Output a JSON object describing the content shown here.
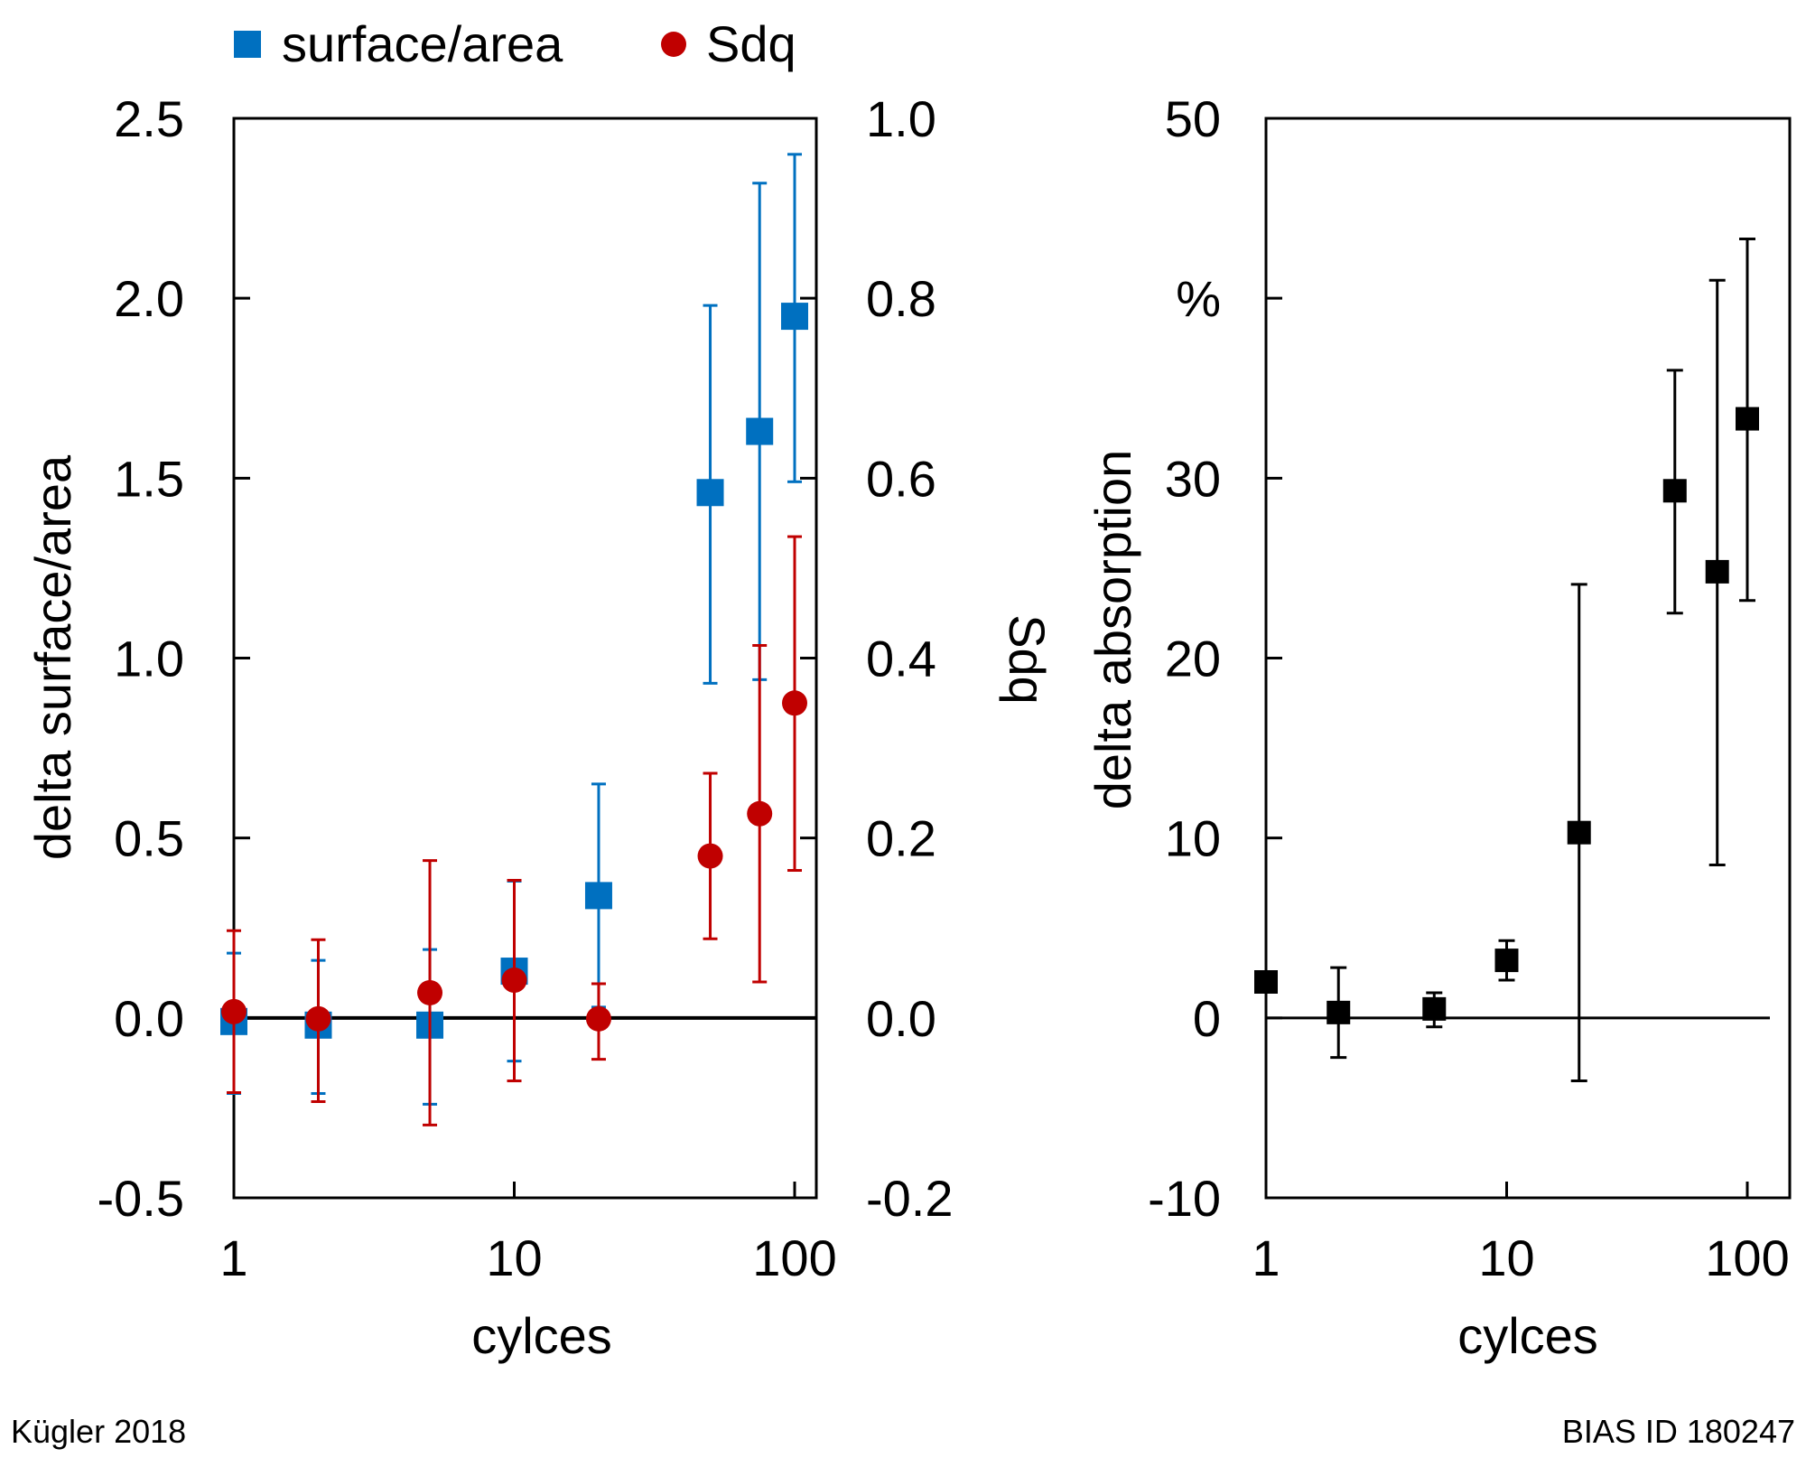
{
  "chart_data": [
    {
      "type": "scatter",
      "xscale": "log",
      "xlim": [
        1,
        100
      ],
      "xticks": [
        1,
        10,
        100
      ],
      "xtick_labels": [
        "1",
        "10",
        "100"
      ],
      "xlabel": "cylces",
      "ylabel": "delta surface/area",
      "ylim": [
        -0.5,
        2.5
      ],
      "yticks": [
        -0.5,
        0.0,
        0.5,
        1.0,
        1.5,
        2.0,
        2.5
      ],
      "ytick_labels": [
        "-0.5",
        "0.0",
        "0.5",
        "1.0",
        "1.5",
        "2.0",
        "2.5"
      ],
      "y2label": "Sdq",
      "y2lim": [
        -0.2,
        1.0
      ],
      "y2ticks": [
        -0.2,
        0.0,
        0.2,
        0.4,
        0.6,
        0.8,
        1.0
      ],
      "y2tick_labels": [
        "-0.2",
        "0.0",
        "0.2",
        "0.4",
        "0.6",
        "0.8",
        "1.0"
      ],
      "legend": {
        "position": "top",
        "entries": [
          "surface/area",
          "Sdq"
        ]
      },
      "series": [
        {
          "name": "surface/area",
          "axis": "left",
          "marker": "square",
          "color": "#0070C0",
          "points": [
            {
              "x": 1,
              "y": -0.01,
              "lo": -0.21,
              "hi": 0.18
            },
            {
              "x": 2,
              "y": -0.02,
              "lo": -0.21,
              "hi": 0.16
            },
            {
              "x": 5,
              "y": -0.02,
              "lo": -0.24,
              "hi": 0.19
            },
            {
              "x": 10,
              "y": 0.13,
              "lo": -0.12,
              "hi": 0.38
            },
            {
              "x": 20,
              "y": 0.34,
              "lo": 0.03,
              "hi": 0.65
            },
            {
              "x": 50,
              "y": 1.46,
              "lo": 0.93,
              "hi": 1.98
            },
            {
              "x": 75,
              "y": 1.63,
              "lo": 0.94,
              "hi": 2.32
            },
            {
              "x": 100,
              "y": 1.95,
              "lo": 1.49,
              "hi": 2.4
            }
          ]
        },
        {
          "name": "Sdq",
          "axis": "right",
          "marker": "circle",
          "color": "#C00000",
          "points": [
            {
              "x": 1,
              "y": 0.007,
              "lo": -0.083,
              "hi": 0.097
            },
            {
              "x": 2,
              "y": -0.001,
              "lo": -0.093,
              "hi": 0.087
            },
            {
              "x": 5,
              "y": 0.028,
              "lo": -0.119,
              "hi": 0.175
            },
            {
              "x": 10,
              "y": 0.042,
              "lo": -0.07,
              "hi": 0.153
            },
            {
              "x": 20,
              "y": -0.001,
              "lo": -0.046,
              "hi": 0.038
            },
            {
              "x": 50,
              "y": 0.18,
              "lo": 0.088,
              "hi": 0.272
            },
            {
              "x": 75,
              "y": 0.227,
              "lo": 0.04,
              "hi": 0.414
            },
            {
              "x": 100,
              "y": 0.35,
              "lo": 0.164,
              "hi": 0.535
            }
          ]
        }
      ]
    },
    {
      "type": "scatter",
      "xscale": "log",
      "xlim": [
        1,
        120
      ],
      "xticks": [
        1,
        10,
        100
      ],
      "xtick_labels": [
        "1",
        "10",
        "100"
      ],
      "xlabel": "cylces",
      "ylabel": "delta absorption",
      "yunit": "%",
      "ylim": [
        -10,
        50
      ],
      "yticks": [
        -10,
        0,
        10,
        20,
        30,
        40,
        50
      ],
      "ytick_labels": [
        "-10",
        "0",
        "10",
        "20",
        "30",
        "%",
        "50"
      ],
      "series": [
        {
          "name": "delta absorption",
          "marker": "square",
          "color": "#000000",
          "points": [
            {
              "x": 1,
              "y": 2.0,
              "lo": null,
              "hi": null
            },
            {
              "x": 2,
              "y": 0.3,
              "lo": -2.2,
              "hi": 2.8
            },
            {
              "x": 5,
              "y": 0.5,
              "lo": -0.5,
              "hi": 1.4
            },
            {
              "x": 10,
              "y": 3.2,
              "lo": 2.1,
              "hi": 4.3
            },
            {
              "x": 20,
              "y": 10.3,
              "lo": -3.5,
              "hi": 24.1
            },
            {
              "x": 50,
              "y": 29.3,
              "lo": 22.5,
              "hi": 36.0
            },
            {
              "x": 75,
              "y": 24.8,
              "lo": 8.5,
              "hi": 41.0
            },
            {
              "x": 100,
              "y": 33.3,
              "lo": 23.2,
              "hi": 43.3
            }
          ]
        }
      ]
    }
  ],
  "footer": {
    "left": "Kügler 2018",
    "right": "BIAS ID 180247"
  }
}
